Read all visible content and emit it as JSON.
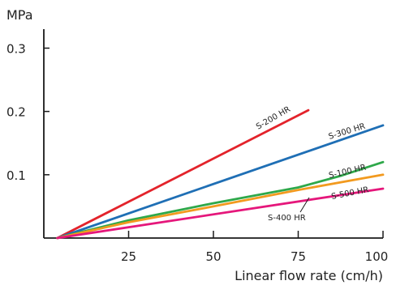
{
  "chart_data": {
    "type": "line",
    "title": "",
    "xlabel": "Linear flow rate (cm/h)",
    "ylabel": "MPa",
    "xlim": [
      0,
      100
    ],
    "ylim": [
      0,
      0.33
    ],
    "xticks": [
      25,
      50,
      75,
      100
    ],
    "xtick_labels": [
      "25",
      "50",
      "75",
      "100"
    ],
    "yticks": [
      0.1,
      0.2,
      0.3
    ],
    "ytick_labels": [
      "0.1",
      "0.2",
      "0.3"
    ],
    "grid": false,
    "legend": "none",
    "series": [
      {
        "name": "S-200 HR",
        "color": "#e3232b",
        "x": [
          4,
          78
        ],
        "y": [
          0.0,
          0.202
        ]
      },
      {
        "name": "S-300 HR",
        "color": "#1f6fb5",
        "x": [
          4,
          100
        ],
        "y": [
          0.0,
          0.178
        ]
      },
      {
        "name": "S-100 HR",
        "color": "#2ea84a",
        "x": [
          4,
          25,
          50,
          75,
          88,
          100
        ],
        "y": [
          0.0,
          0.028,
          0.055,
          0.08,
          0.099,
          0.12
        ]
      },
      {
        "name": "S-400 HR",
        "color": "#f29a1f",
        "x": [
          4,
          25,
          50,
          75,
          100
        ],
        "y": [
          0.0,
          0.025,
          0.05,
          0.076,
          0.1
        ]
      },
      {
        "name": "S-500 HR",
        "color": "#e5177b",
        "x": [
          4,
          100
        ],
        "y": [
          0.0,
          0.078
        ]
      }
    ]
  }
}
